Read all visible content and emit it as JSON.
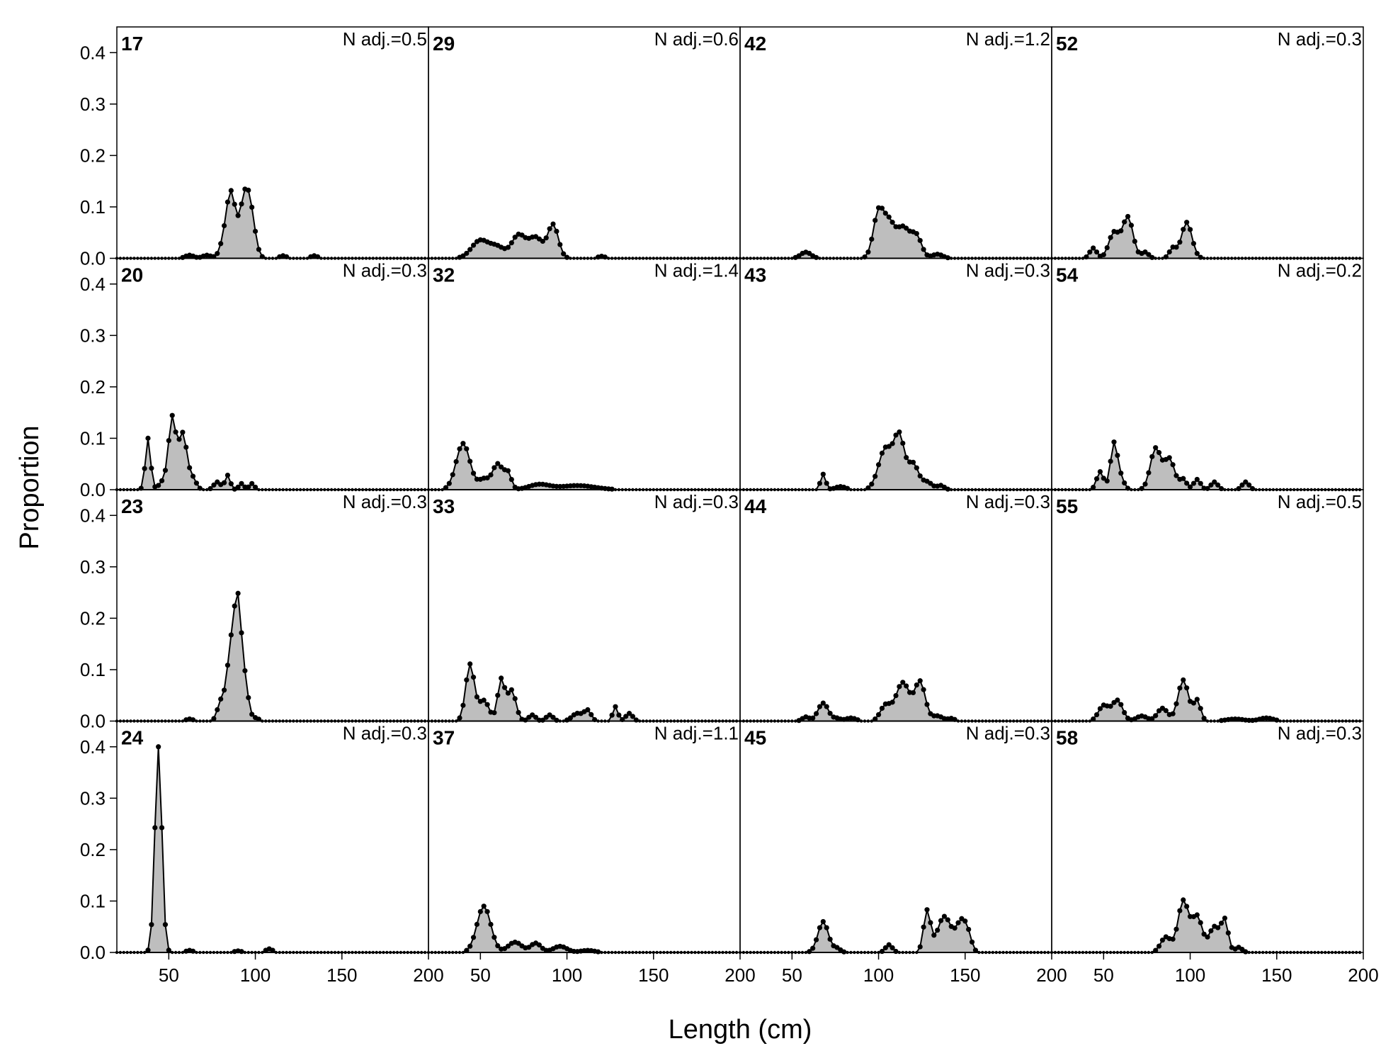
{
  "chart_data": {
    "type": "area",
    "xlabel": "Length (cm)",
    "ylabel": "Proportion",
    "xlim": [
      20,
      200
    ],
    "ylim": [
      0,
      0.45
    ],
    "xticks": [
      "50",
      "100",
      "150",
      "200"
    ],
    "yticks": [
      "0.0",
      "0.1",
      "0.2",
      "0.3",
      "0.4"
    ],
    "x_start": 20,
    "x_step": 2,
    "point_count": 90,
    "panels": [
      {
        "id": "17",
        "nadj": "N adj.=0.5",
        "peaks": [
          [
            62,
            0.006,
            2.5
          ],
          [
            72,
            0.006,
            2.5
          ],
          [
            82,
            0.03,
            2.5
          ],
          [
            86,
            0.12,
            2.5
          ],
          [
            94,
            0.12,
            3
          ],
          [
            98,
            0.05,
            2.5
          ],
          [
            116,
            0.005,
            2
          ],
          [
            134,
            0.005,
            2
          ]
        ]
      },
      {
        "id": "29",
        "nadj": "N adj.=0.6",
        "peaks": [
          [
            50,
            0.035,
            5
          ],
          [
            60,
            0.02,
            4
          ],
          [
            72,
            0.045,
            4
          ],
          [
            82,
            0.04,
            4
          ],
          [
            92,
            0.065,
            3
          ],
          [
            120,
            0.004,
            2
          ]
        ]
      },
      {
        "id": "42",
        "nadj": "N adj.=1.2",
        "peaks": [
          [
            58,
            0.012,
            3
          ],
          [
            100,
            0.09,
            3
          ],
          [
            106,
            0.06,
            3
          ],
          [
            114,
            0.06,
            4
          ],
          [
            122,
            0.04,
            3
          ],
          [
            134,
            0.008,
            3
          ]
        ]
      },
      {
        "id": "52",
        "nadj": "N adj.=0.3",
        "peaks": [
          [
            44,
            0.02,
            2
          ],
          [
            56,
            0.05,
            3
          ],
          [
            64,
            0.08,
            3
          ],
          [
            74,
            0.012,
            2
          ],
          [
            90,
            0.02,
            2
          ],
          [
            98,
            0.07,
            3
          ]
        ]
      },
      {
        "id": "20",
        "nadj": "N adj.=0.3",
        "peaks": [
          [
            38,
            0.1,
            1.5
          ],
          [
            48,
            0.02,
            3
          ],
          [
            52,
            0.13,
            2
          ],
          [
            58,
            0.11,
            2.5
          ],
          [
            64,
            0.02,
            2
          ],
          [
            78,
            0.015,
            2
          ],
          [
            84,
            0.028,
            1.5
          ],
          [
            92,
            0.012,
            1.5
          ],
          [
            98,
            0.012,
            1.5
          ]
        ]
      },
      {
        "id": "32",
        "nadj": "N adj.=1.4",
        "peaks": [
          [
            40,
            0.09,
            4
          ],
          [
            52,
            0.02,
            3
          ],
          [
            60,
            0.05,
            3
          ],
          [
            66,
            0.03,
            2
          ],
          [
            84,
            0.01,
            6
          ],
          [
            106,
            0.008,
            10
          ]
        ]
      },
      {
        "id": "43",
        "nadj": "N adj.=0.3",
        "peaks": [
          [
            68,
            0.03,
            1.5
          ],
          [
            78,
            0.006,
            3
          ],
          [
            104,
            0.08,
            4
          ],
          [
            112,
            0.1,
            3
          ],
          [
            120,
            0.05,
            3
          ],
          [
            128,
            0.015,
            3
          ],
          [
            136,
            0.008,
            2
          ]
        ]
      },
      {
        "id": "54",
        "nadj": "N adj.=0.2",
        "peaks": [
          [
            48,
            0.035,
            2
          ],
          [
            56,
            0.09,
            2
          ],
          [
            60,
            0.02,
            2
          ],
          [
            80,
            0.08,
            3
          ],
          [
            88,
            0.06,
            3
          ],
          [
            96,
            0.02,
            2
          ],
          [
            104,
            0.02,
            2
          ],
          [
            114,
            0.015,
            2
          ],
          [
            132,
            0.015,
            2
          ]
        ]
      },
      {
        "id": "23",
        "nadj": "N adj.=0.3",
        "peaks": [
          [
            62,
            0.004,
            2
          ],
          [
            80,
            0.035,
            2
          ],
          [
            86,
            0.14,
            2.5
          ],
          [
            90,
            0.2,
            2
          ],
          [
            94,
            0.07,
            2
          ],
          [
            100,
            0.006,
            2
          ]
        ]
      },
      {
        "id": "33",
        "nadj": "N adj.=0.3",
        "peaks": [
          [
            44,
            0.11,
            2.5
          ],
          [
            52,
            0.04,
            3
          ],
          [
            62,
            0.08,
            2
          ],
          [
            68,
            0.06,
            2.5
          ],
          [
            80,
            0.012,
            2
          ],
          [
            90,
            0.012,
            2
          ],
          [
            106,
            0.015,
            3
          ],
          [
            112,
            0.02,
            2
          ],
          [
            128,
            0.028,
            1.5
          ],
          [
            136,
            0.015,
            2
          ]
        ]
      },
      {
        "id": "44",
        "nadj": "N adj.=0.3",
        "peaks": [
          [
            58,
            0.008,
            2
          ],
          [
            68,
            0.035,
            3
          ],
          [
            76,
            0.005,
            2
          ],
          [
            84,
            0.006,
            3
          ],
          [
            104,
            0.03,
            3
          ],
          [
            114,
            0.075,
            4
          ],
          [
            124,
            0.075,
            3
          ],
          [
            134,
            0.01,
            3
          ],
          [
            142,
            0.005,
            2
          ]
        ]
      },
      {
        "id": "55",
        "nadj": "N adj.=0.5",
        "peaks": [
          [
            50,
            0.03,
            3
          ],
          [
            58,
            0.04,
            3
          ],
          [
            72,
            0.01,
            3
          ],
          [
            84,
            0.025,
            3
          ],
          [
            96,
            0.08,
            3
          ],
          [
            104,
            0.04,
            2
          ],
          [
            126,
            0.004,
            5
          ],
          [
            144,
            0.006,
            4
          ]
        ]
      },
      {
        "id": "24",
        "nadj": "N adj.=0.3",
        "peaks": [
          [
            44,
            0.4,
            2
          ],
          [
            62,
            0.004,
            2
          ],
          [
            90,
            0.003,
            2
          ],
          [
            108,
            0.007,
            2
          ]
        ]
      },
      {
        "id": "37",
        "nadj": "N adj.=1.1",
        "peaks": [
          [
            52,
            0.09,
            4
          ],
          [
            70,
            0.02,
            4
          ],
          [
            82,
            0.018,
            3
          ],
          [
            96,
            0.012,
            4
          ],
          [
            112,
            0.004,
            4
          ]
        ]
      },
      {
        "id": "45",
        "nadj": "N adj.=0.3",
        "peaks": [
          [
            68,
            0.06,
            3
          ],
          [
            76,
            0.008,
            2
          ],
          [
            106,
            0.015,
            2
          ],
          [
            128,
            0.08,
            2
          ],
          [
            138,
            0.07,
            4
          ],
          [
            148,
            0.06,
            3
          ],
          [
            152,
            0.02,
            2
          ]
        ]
      },
      {
        "id": "58",
        "nadj": "N adj.=0.3",
        "peaks": [
          [
            86,
            0.03,
            3
          ],
          [
            96,
            0.1,
            3
          ],
          [
            104,
            0.07,
            3
          ],
          [
            114,
            0.05,
            3
          ],
          [
            120,
            0.06,
            2
          ],
          [
            128,
            0.01,
            2
          ]
        ]
      }
    ]
  }
}
